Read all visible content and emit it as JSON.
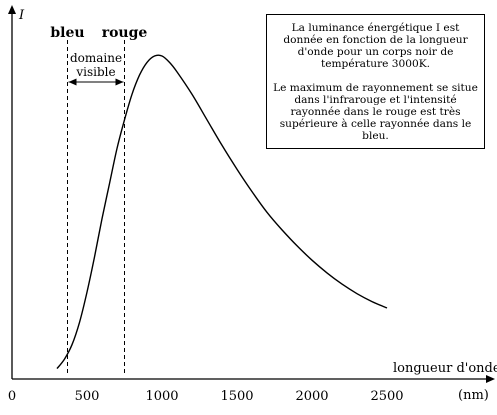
{
  "chart_data": {
    "type": "line",
    "ylabel": "I",
    "xlabel": "longueur d'onde",
    "unit": "(nm)",
    "xlim": [
      0,
      2500
    ],
    "x_ticks": [
      0,
      500,
      1000,
      1500,
      2000,
      2500
    ],
    "grid": false,
    "series": [
      {
        "x": [
          300,
          350,
          400,
          450,
          500,
          550,
          600,
          650,
          700,
          750,
          800,
          850,
          900,
          950,
          1000,
          1050,
          1100,
          1200,
          1300,
          1400,
          1500,
          1600,
          1700,
          1800,
          1900,
          2000,
          2100,
          2200,
          2300,
          2400,
          2500
        ],
        "y": [
          0.02,
          0.05,
          0.095,
          0.165,
          0.26,
          0.37,
          0.49,
          0.6,
          0.71,
          0.8,
          0.88,
          0.94,
          0.98,
          1.0,
          1.0,
          0.98,
          0.95,
          0.88,
          0.8,
          0.72,
          0.645,
          0.575,
          0.51,
          0.455,
          0.405,
          0.36,
          0.32,
          0.285,
          0.255,
          0.23,
          0.21
        ]
      }
    ],
    "markers": [
      {
        "label": "bleu",
        "x": 370
      },
      {
        "label": "rouge",
        "x": 750
      }
    ],
    "domain_label": [
      "domaine",
      "visible"
    ],
    "annotation": [
      "La luminance énergétique I est donnée en fonction de la longueur d'onde pour un corps noir de température 3000K.",
      "Le maximum de rayonnement se situe dans l'infrarouge et l'intensité rayonnée dans le rouge est très supérieure à celle rayonnée dans le bleu."
    ]
  }
}
